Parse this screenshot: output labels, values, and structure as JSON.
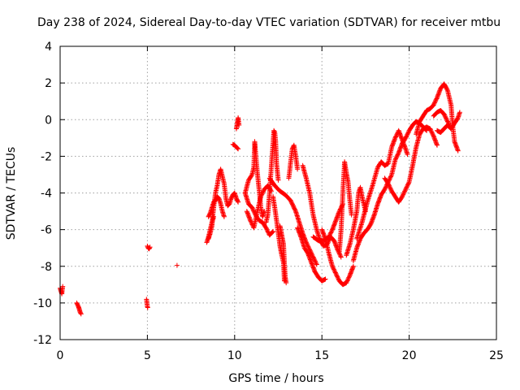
{
  "chart_data": {
    "type": "scatter",
    "title": "Day 238 of 2024, Sidereal Day-to-day VTEC variation (SDTVAR) for receiver mtbu",
    "xlabel": "GPS time / hours",
    "ylabel": "SDTVAR / TECUs",
    "xlim": [
      0,
      25
    ],
    "ylim": [
      -12,
      4
    ],
    "xticks": [
      0,
      5,
      10,
      15,
      20,
      25
    ],
    "yticks": [
      -12,
      -10,
      -8,
      -6,
      -4,
      -2,
      0,
      2,
      4
    ],
    "grid": true,
    "marker": "+",
    "color": "#ff0000",
    "series": [
      {
        "name": "SDTVAR",
        "segments": [
          [
            [
              0.0,
              -9.2
            ],
            [
              0.05,
              -9.35
            ],
            [
              0.1,
              -9.5
            ],
            [
              0.12,
              -9.3
            ],
            [
              0.15,
              -9.1
            ]
          ],
          [
            [
              0.95,
              -10.0
            ],
            [
              1.0,
              -10.1
            ],
            [
              1.05,
              -10.2
            ],
            [
              1.1,
              -10.35
            ],
            [
              1.15,
              -10.5
            ],
            [
              1.2,
              -10.6
            ]
          ],
          [
            [
              4.95,
              -9.8
            ],
            [
              5.0,
              -10.2
            ],
            [
              5.02,
              -10.25
            ]
          ],
          [
            [
              5.0,
              -6.9
            ],
            [
              5.05,
              -7.0
            ],
            [
              5.1,
              -7.05
            ],
            [
              5.15,
              -6.95
            ]
          ],
          [
            [
              6.7,
              -7.95
            ]
          ],
          [
            [
              8.5,
              -6.5
            ],
            [
              8.6,
              -6.2
            ],
            [
              8.7,
              -5.8
            ],
            [
              8.75,
              -5.2
            ],
            [
              8.8,
              -4.8
            ],
            [
              8.9,
              -4.0
            ],
            [
              9.0,
              -3.6
            ],
            [
              9.1,
              -3.0
            ],
            [
              9.2,
              -2.7
            ],
            [
              9.3,
              -3.1
            ],
            [
              9.4,
              -3.5
            ],
            [
              9.5,
              -4.3
            ],
            [
              9.6,
              -4.7
            ],
            [
              9.7,
              -4.6
            ],
            [
              9.8,
              -4.3
            ],
            [
              9.9,
              -4.1
            ],
            [
              10.0,
              -4.0
            ],
            [
              10.1,
              -4.3
            ],
            [
              10.2,
              -4.5
            ]
          ],
          [
            [
              8.5,
              -5.3
            ],
            [
              8.6,
              -5.1
            ],
            [
              8.7,
              -4.8
            ],
            [
              8.8,
              -4.5
            ],
            [
              8.9,
              -4.4
            ],
            [
              9.0,
              -4.2
            ],
            [
              9.1,
              -4.3
            ],
            [
              9.2,
              -4.6
            ],
            [
              9.3,
              -5.0
            ],
            [
              9.4,
              -5.3
            ]
          ],
          [
            [
              8.4,
              -6.7
            ],
            [
              8.5,
              -6.4
            ],
            [
              8.6,
              -6.0
            ],
            [
              8.7,
              -5.6
            ],
            [
              8.8,
              -5.3
            ]
          ],
          [
            [
              9.9,
              -1.35
            ],
            [
              10.0,
              -1.4
            ],
            [
              10.1,
              -1.5
            ],
            [
              10.2,
              -1.6
            ]
          ],
          [
            [
              10.1,
              -0.5
            ],
            [
              10.15,
              -0.2
            ],
            [
              10.2,
              0.1
            ],
            [
              10.25,
              -0.3
            ]
          ],
          [
            [
              10.6,
              -4.0
            ],
            [
              10.8,
              -3.3
            ],
            [
              11.0,
              -3.0
            ],
            [
              11.1,
              -2.6
            ],
            [
              11.15,
              -1.2
            ],
            [
              11.2,
              -1.8
            ],
            [
              11.3,
              -2.9
            ],
            [
              11.4,
              -3.8
            ],
            [
              11.5,
              -4.8
            ],
            [
              11.6,
              -5.3
            ],
            [
              11.7,
              -5.0
            ]
          ],
          [
            [
              10.6,
              -4.0
            ],
            [
              10.8,
              -4.6
            ],
            [
              11.0,
              -4.8
            ],
            [
              11.2,
              -5.2
            ],
            [
              11.4,
              -5.5
            ],
            [
              11.6,
              -5.6
            ],
            [
              11.8,
              -5.9
            ],
            [
              12.0,
              -6.3
            ],
            [
              12.2,
              -6.1
            ]
          ],
          [
            [
              10.7,
              -5.0
            ],
            [
              10.9,
              -5.5
            ],
            [
              11.1,
              -5.9
            ],
            [
              11.3,
              -5.0
            ],
            [
              11.5,
              -4.2
            ],
            [
              11.7,
              -3.8
            ],
            [
              11.9,
              -3.6
            ],
            [
              12.1,
              -3.9
            ]
          ],
          [
            [
              11.8,
              -5.6
            ],
            [
              11.9,
              -5.2
            ],
            [
              12.0,
              -4.0
            ],
            [
              12.1,
              -2.6
            ],
            [
              12.2,
              -1.3
            ],
            [
              12.25,
              -0.6
            ],
            [
              12.3,
              -0.7
            ],
            [
              12.35,
              -1.2
            ],
            [
              12.4,
              -2.4
            ],
            [
              12.5,
              -3.3
            ]
          ],
          [
            [
              12.2,
              -4.2
            ],
            [
              12.3,
              -4.8
            ],
            [
              12.4,
              -5.5
            ],
            [
              12.5,
              -6.2
            ],
            [
              12.6,
              -6.9
            ],
            [
              12.7,
              -7.4
            ],
            [
              12.8,
              -7.8
            ],
            [
              12.85,
              -8.8
            ]
          ],
          [
            [
              12.6,
              -5.8
            ],
            [
              12.7,
              -6.3
            ],
            [
              12.8,
              -6.8
            ],
            [
              12.85,
              -7.8
            ],
            [
              12.9,
              -8.6
            ],
            [
              12.95,
              -8.9
            ]
          ],
          [
            [
              12.0,
              -3.2
            ],
            [
              12.3,
              -3.6
            ],
            [
              12.6,
              -3.9
            ],
            [
              12.9,
              -4.1
            ],
            [
              13.2,
              -4.4
            ],
            [
              13.5,
              -5.0
            ],
            [
              13.7,
              -5.6
            ],
            [
              13.9,
              -6.2
            ],
            [
              14.1,
              -6.7
            ],
            [
              14.3,
              -7.1
            ],
            [
              14.5,
              -7.5
            ],
            [
              14.7,
              -7.9
            ]
          ],
          [
            [
              13.1,
              -3.2
            ],
            [
              13.2,
              -2.4
            ],
            [
              13.3,
              -1.6
            ],
            [
              13.4,
              -1.4
            ],
            [
              13.5,
              -2.0
            ],
            [
              13.6,
              -2.7
            ]
          ],
          [
            [
              13.6,
              -5.9
            ],
            [
              13.8,
              -6.4
            ],
            [
              14.0,
              -7.0
            ],
            [
              14.2,
              -7.3
            ],
            [
              14.4,
              -7.8
            ],
            [
              14.6,
              -8.3
            ],
            [
              14.8,
              -8.6
            ],
            [
              15.0,
              -8.8
            ],
            [
              15.2,
              -8.7
            ]
          ],
          [
            [
              13.9,
              -2.5
            ],
            [
              14.1,
              -3.2
            ],
            [
              14.3,
              -4.0
            ],
            [
              14.5,
              -5.2
            ],
            [
              14.7,
              -6.0
            ],
            [
              14.9,
              -6.6
            ],
            [
              15.1,
              -6.9
            ],
            [
              15.3,
              -6.8
            ],
            [
              15.5,
              -6.4
            ],
            [
              15.7,
              -6.6
            ],
            [
              15.9,
              -7.1
            ],
            [
              16.1,
              -7.5
            ]
          ],
          [
            [
              14.5,
              -6.4
            ],
            [
              14.8,
              -6.6
            ],
            [
              15.1,
              -6.6
            ],
            [
              15.4,
              -6.4
            ],
            [
              15.6,
              -6.0
            ],
            [
              15.8,
              -5.5
            ],
            [
              16.0,
              -5.0
            ],
            [
              16.2,
              -4.6
            ]
          ],
          [
            [
              15.0,
              -6.0
            ],
            [
              15.2,
              -6.5
            ],
            [
              15.4,
              -7.3
            ],
            [
              15.6,
              -8.0
            ],
            [
              15.8,
              -8.4
            ],
            [
              16.0,
              -8.8
            ],
            [
              16.2,
              -9.0
            ],
            [
              16.4,
              -8.9
            ],
            [
              16.6,
              -8.5
            ],
            [
              16.8,
              -8.0
            ]
          ],
          [
            [
              16.0,
              -7.2
            ],
            [
              16.1,
              -6.0
            ],
            [
              16.2,
              -4.0
            ],
            [
              16.3,
              -2.3
            ],
            [
              16.4,
              -2.9
            ],
            [
              16.5,
              -3.4
            ],
            [
              16.6,
              -4.4
            ],
            [
              16.7,
              -5.2
            ]
          ],
          [
            [
              16.4,
              -7.4
            ],
            [
              16.6,
              -6.8
            ],
            [
              16.8,
              -6.0
            ],
            [
              17.0,
              -5.0
            ],
            [
              17.1,
              -4.0
            ],
            [
              17.2,
              -3.7
            ],
            [
              17.3,
              -4.2
            ],
            [
              17.5,
              -5.0
            ]
          ],
          [
            [
              16.8,
              -7.7
            ],
            [
              17.0,
              -7.0
            ],
            [
              17.2,
              -6.5
            ],
            [
              17.4,
              -6.2
            ],
            [
              17.6,
              -6.0
            ],
            [
              17.8,
              -5.7
            ],
            [
              18.0,
              -5.2
            ],
            [
              18.2,
              -4.6
            ],
            [
              18.4,
              -4.1
            ],
            [
              18.6,
              -3.8
            ],
            [
              18.8,
              -3.4
            ],
            [
              19.0,
              -3.0
            ],
            [
              19.2,
              -2.2
            ],
            [
              19.4,
              -1.8
            ],
            [
              19.6,
              -1.3
            ],
            [
              19.8,
              -1.0
            ],
            [
              20.0,
              -0.6
            ],
            [
              20.2,
              -0.3
            ],
            [
              20.4,
              -0.1
            ],
            [
              20.6,
              -0.2
            ],
            [
              20.8,
              -0.4
            ],
            [
              21.0,
              -0.6
            ]
          ],
          [
            [
              17.0,
              -6.5
            ],
            [
              17.3,
              -5.6
            ],
            [
              17.6,
              -4.5
            ],
            [
              17.9,
              -3.6
            ],
            [
              18.2,
              -2.6
            ],
            [
              18.4,
              -2.3
            ],
            [
              18.6,
              -2.5
            ],
            [
              18.8,
              -2.4
            ],
            [
              19.0,
              -1.5
            ],
            [
              19.2,
              -1.0
            ],
            [
              19.4,
              -0.6
            ],
            [
              19.6,
              -1.1
            ],
            [
              19.8,
              -1.6
            ],
            [
              19.9,
              -1.9
            ]
          ],
          [
            [
              18.6,
              -3.2
            ],
            [
              18.8,
              -3.5
            ],
            [
              19.0,
              -3.9
            ],
            [
              19.2,
              -4.2
            ],
            [
              19.4,
              -4.5
            ],
            [
              19.6,
              -4.2
            ],
            [
              19.8,
              -3.8
            ],
            [
              20.0,
              -3.4
            ],
            [
              20.2,
              -2.5
            ],
            [
              20.4,
              -1.5
            ],
            [
              20.6,
              -0.8
            ],
            [
              20.8,
              -0.5
            ],
            [
              21.0,
              -0.4
            ],
            [
              21.2,
              -0.5
            ],
            [
              21.4,
              -0.9
            ],
            [
              21.6,
              -1.4
            ]
          ],
          [
            [
              20.4,
              -0.8
            ],
            [
              20.6,
              -0.1
            ],
            [
              20.8,
              0.2
            ],
            [
              21.0,
              0.5
            ],
            [
              21.2,
              0.6
            ],
            [
              21.4,
              0.8
            ],
            [
              21.6,
              1.2
            ],
            [
              21.8,
              1.7
            ],
            [
              22.0,
              1.95
            ],
            [
              22.2,
              1.6
            ],
            [
              22.4,
              0.8
            ],
            [
              22.5,
              -0.4
            ],
            [
              22.6,
              -1.2
            ],
            [
              22.8,
              -1.7
            ]
          ],
          [
            [
              21.6,
              -0.6
            ],
            [
              21.8,
              -0.7
            ],
            [
              22.0,
              -0.5
            ],
            [
              22.2,
              -0.3
            ],
            [
              22.4,
              -0.5
            ],
            [
              22.6,
              -0.2
            ],
            [
              22.8,
              0.1
            ],
            [
              22.9,
              0.4
            ]
          ],
          [
            [
              21.4,
              0.2
            ],
            [
              21.6,
              0.4
            ],
            [
              21.8,
              0.5
            ],
            [
              22.0,
              0.3
            ],
            [
              22.2,
              -0.1
            ],
            [
              22.4,
              -0.5
            ]
          ]
        ]
      }
    ]
  }
}
